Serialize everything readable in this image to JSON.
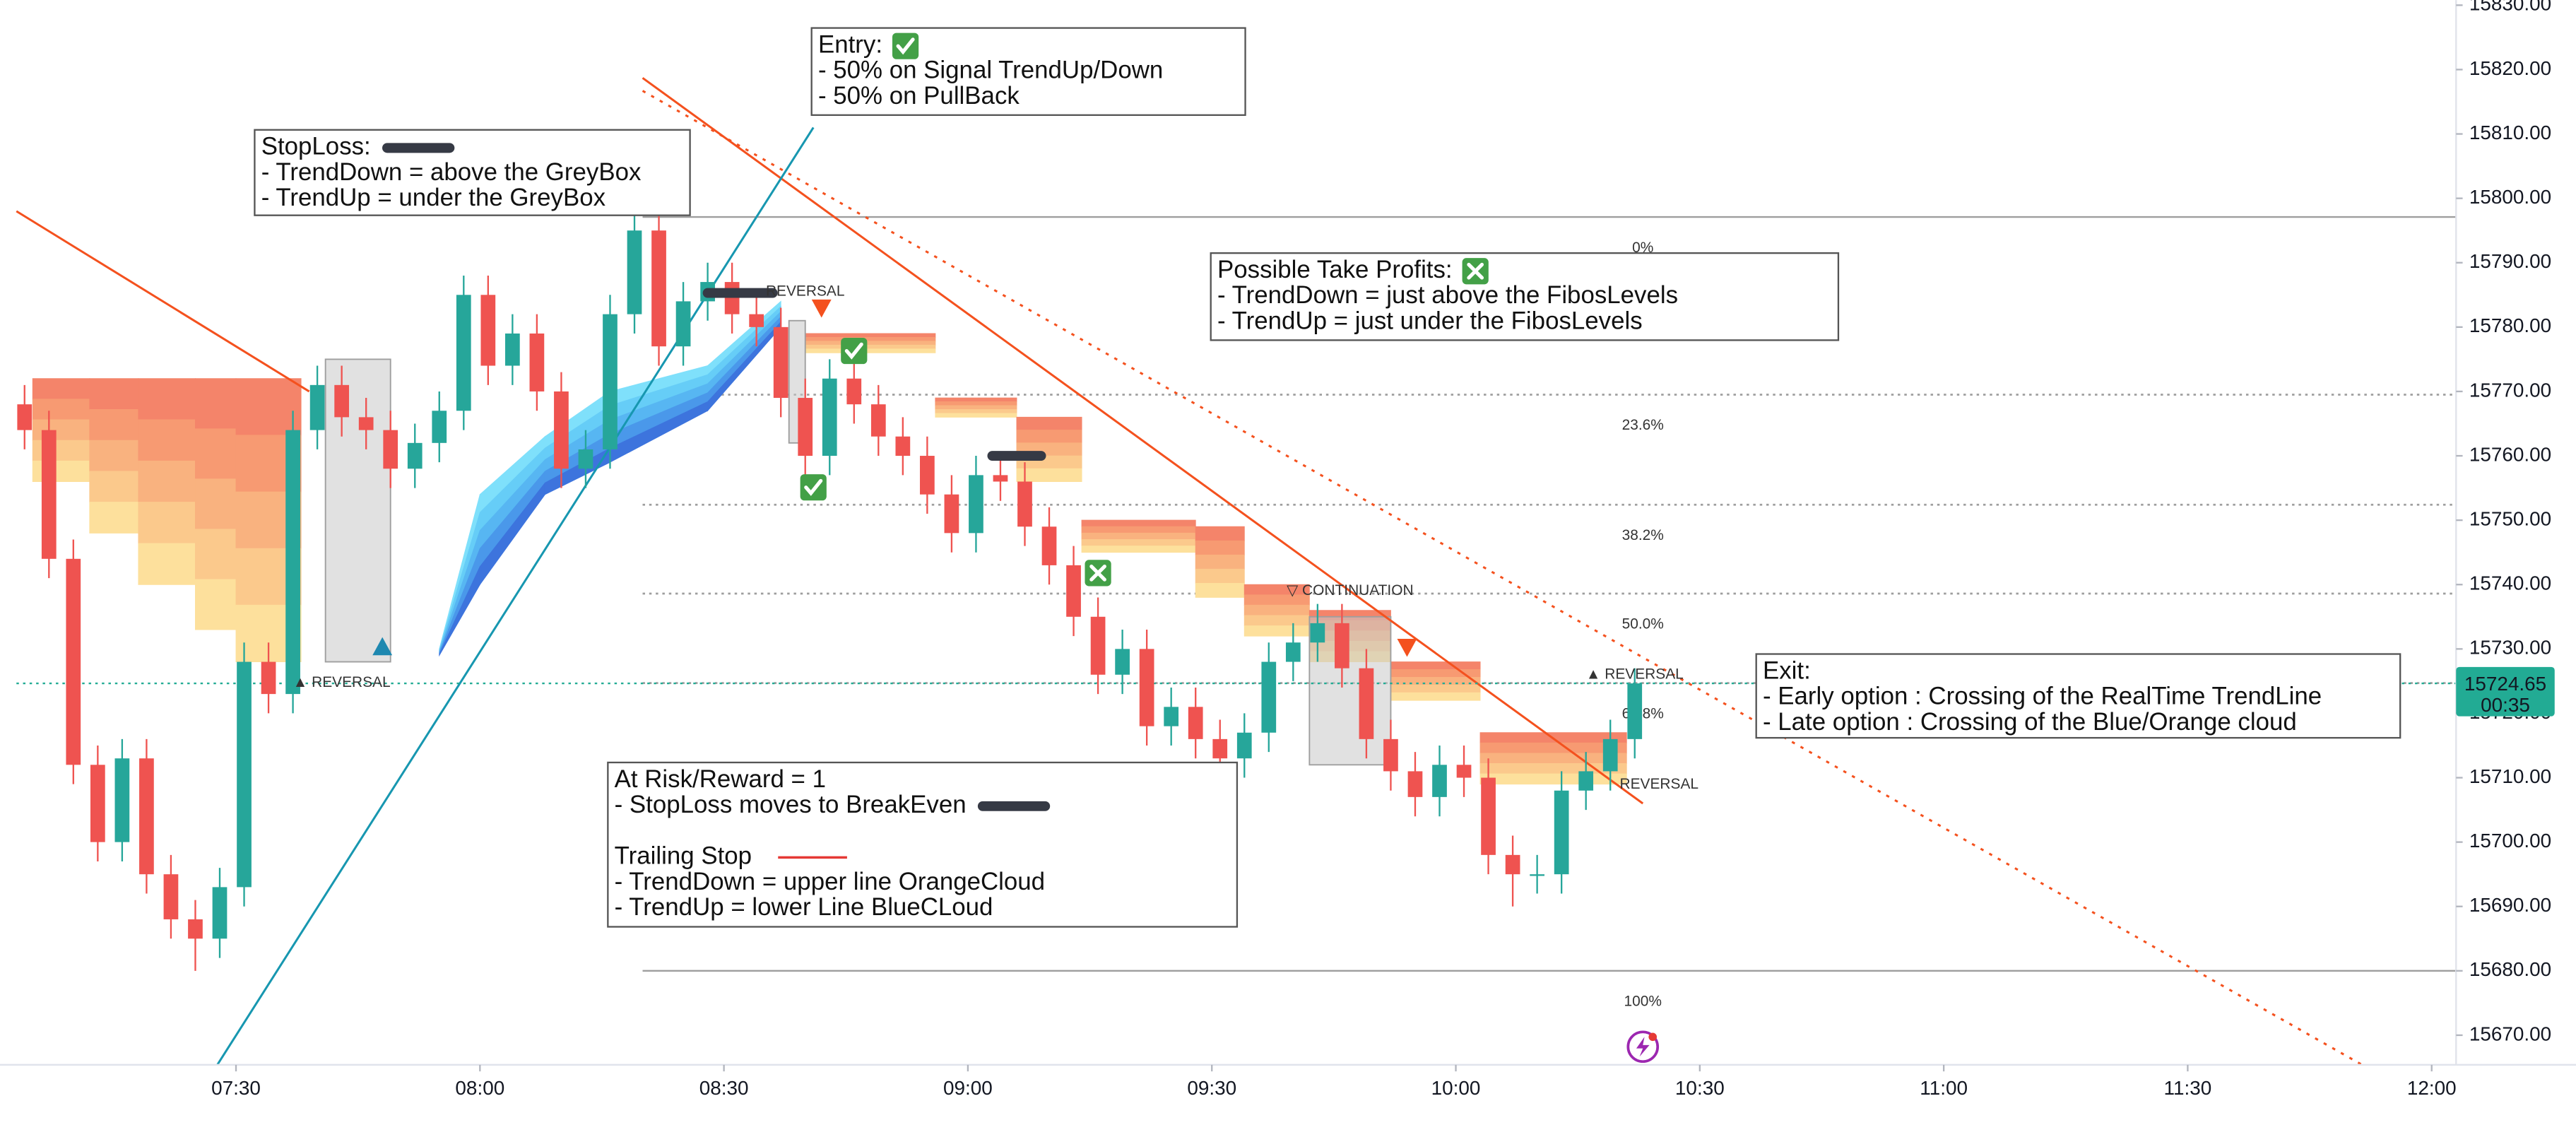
{
  "chart_data": {
    "type": "candlestick",
    "x": [
      "07:04",
      "07:07",
      "07:10",
      "07:13",
      "07:16",
      "07:19",
      "07:22",
      "07:25",
      "07:28",
      "07:31",
      "07:34",
      "07:37",
      "07:40",
      "07:43",
      "07:46",
      "07:49",
      "07:52",
      "07:55",
      "07:58",
      "08:01",
      "08:04",
      "08:07",
      "08:10",
      "08:13",
      "08:16",
      "08:19",
      "08:22",
      "08:25",
      "08:28",
      "08:31",
      "08:34",
      "08:37",
      "08:40",
      "08:43",
      "08:46",
      "08:49",
      "08:52",
      "08:55",
      "08:58",
      "09:01",
      "09:04",
      "09:07",
      "09:10",
      "09:13",
      "09:16",
      "09:19",
      "09:22",
      "09:25",
      "09:28",
      "09:31",
      "09:34",
      "09:37",
      "09:40",
      "09:43",
      "09:46",
      "09:49",
      "09:52",
      "09:55",
      "09:58",
      "10:01",
      "10:04",
      "10:07",
      "10:10",
      "10:13",
      "10:16",
      "10:19",
      "10:22"
    ],
    "open": [
      15768,
      15764,
      15744,
      15712,
      15700,
      15713,
      15695,
      15688,
      15685,
      15693,
      15728,
      15723,
      15764,
      15771,
      15766,
      15764,
      15758,
      15762,
      15767,
      15785,
      15774,
      15779,
      15770,
      15758,
      15761,
      15782,
      15795,
      15777,
      15784,
      15787,
      15782,
      15780,
      15769,
      15760,
      15772,
      15768,
      15763,
      15760,
      15754,
      15748,
      15757,
      15756,
      15749,
      15743,
      15735,
      15726,
      15730,
      15718,
      15721,
      15716,
      15713,
      15717,
      15728,
      15731,
      15734,
      15727,
      15716,
      15711,
      15707,
      15712,
      15710,
      15698,
      15695,
      15695,
      15708,
      15711,
      15716
    ],
    "high": [
      15771,
      15767,
      15747,
      15715,
      15716,
      15716,
      15698,
      15691,
      15696,
      15731,
      15731,
      15767,
      15774,
      15774,
      15769,
      15767,
      15765,
      15770,
      15788,
      15788,
      15782,
      15782,
      15773,
      15764,
      15785,
      15800,
      15798,
      15787,
      15790,
      15790,
      15785,
      15783,
      15772,
      15775,
      15775,
      15771,
      15766,
      15763,
      15757,
      15760,
      15760,
      15759,
      15752,
      15746,
      15738,
      15733,
      15733,
      15724,
      15724,
      15719,
      15720,
      15731,
      15734,
      15737,
      15737,
      15730,
      15719,
      15714,
      15715,
      15715,
      15713,
      15701,
      15698,
      15711,
      15714,
      15719,
      15727
    ],
    "low": [
      15761,
      15741,
      15709,
      15697,
      15697,
      15692,
      15685,
      15680,
      15682,
      15690,
      15720,
      15720,
      15761,
      15763,
      15761,
      15755,
      15755,
      15759,
      15764,
      15771,
      15771,
      15767,
      15755,
      15755,
      15758,
      15779,
      15774,
      15774,
      15781,
      15779,
      15777,
      15766,
      15757,
      15757,
      15765,
      15760,
      15757,
      15751,
      15745,
      15745,
      15753,
      15746,
      15740,
      15732,
      15723,
      15723,
      15715,
      15715,
      15713,
      15710,
      15710,
      15714,
      15725,
      15728,
      15724,
      15713,
      15708,
      15704,
      15704,
      15707,
      15695,
      15690,
      15692,
      15692,
      15705,
      15708,
      15713
    ],
    "close": [
      15764,
      15744,
      15712,
      15700,
      15713,
      15695,
      15688,
      15685,
      15693,
      15728,
      15723,
      15764,
      15771,
      15766,
      15764,
      15758,
      15762,
      15767,
      15785,
      15774,
      15779,
      15770,
      15758,
      15761,
      15782,
      15795,
      15777,
      15784,
      15787,
      15782,
      15780,
      15769,
      15760,
      15772,
      15768,
      15763,
      15760,
      15754,
      15748,
      15757,
      15756,
      15749,
      15743,
      15735,
      15726,
      15730,
      15718,
      15721,
      15716,
      15713,
      15717,
      15728,
      15731,
      15734,
      15727,
      15716,
      15711,
      15707,
      15712,
      15710,
      15698,
      15695,
      15695,
      15708,
      15711,
      15716,
      15724.65
    ],
    "up_color": "#26a69a",
    "down_color": "#ef5350",
    "xlim": [
      "07:03",
      "12:03"
    ],
    "xticks": [
      "07:30",
      "08:00",
      "08:30",
      "09:00",
      "09:30",
      "10:00",
      "10:30",
      "11:00",
      "11:30",
      "12:00"
    ],
    "ylim": [
      15665.4,
      15830.8
    ],
    "yticks": [
      {
        "value": 15670,
        "label": "15670.00"
      },
      {
        "value": 15680,
        "label": "15680.00"
      },
      {
        "value": 15690,
        "label": "15690.00"
      },
      {
        "value": 15700,
        "label": "15700.00"
      },
      {
        "value": 15710,
        "label": "15710.00"
      },
      {
        "value": 15720,
        "label": "15720.00"
      },
      {
        "value": 15730,
        "label": "15730.00"
      },
      {
        "value": 15740,
        "label": "15740.00"
      },
      {
        "value": 15750,
        "label": "15750.00"
      },
      {
        "value": 15760,
        "label": "15760.00"
      },
      {
        "value": 15770,
        "label": "15770.00"
      },
      {
        "value": 15780,
        "label": "15780.00"
      },
      {
        "value": 15790,
        "label": "15790.00"
      },
      {
        "value": 15800,
        "label": "15800.00"
      },
      {
        "value": 15810,
        "label": "15810.00"
      },
      {
        "value": 15820,
        "label": "15820.00"
      },
      {
        "value": 15830,
        "label": "15830.00"
      }
    ],
    "last_price": {
      "value": 15724.65,
      "countdown": "00:35",
      "color": "#22ab94"
    },
    "fib": {
      "x": [
        "08:20",
        "12:03"
      ],
      "color": "#9e9e9e",
      "levels": [
        {
          "level": "0%",
          "price": 15797.1,
          "style": "solid"
        },
        {
          "level": "23.6%",
          "price": 15769.5,
          "style": "dotted"
        },
        {
          "level": "38.2%",
          "price": 15752.4,
          "style": "dotted"
        },
        {
          "level": "50.0%",
          "price": 15738.6,
          "style": "dotted"
        },
        {
          "level": "61.8%",
          "price": 15724.7,
          "style": "dotted"
        },
        {
          "level": "100%",
          "price": 15680,
          "style": "solid"
        }
      ]
    },
    "clouds": [
      {
        "shape": "step",
        "colors": [
          "#f4846a",
          "#f79a72",
          "#f9b27f",
          "#fbc98c",
          "#fde09c"
        ],
        "x": [
          "07:05",
          "07:12",
          "07:18",
          "07:25",
          "07:30",
          "07:38"
        ],
        "upper": [
          15772,
          15772,
          15772,
          15772,
          15772,
          15772
        ],
        "lower": [
          15756,
          15748,
          15740,
          15733,
          15728,
          15728
        ]
      },
      {
        "shape": "linear",
        "colors": [
          "#7fe0fb",
          "#66cdf7",
          "#57b6f2",
          "#4a98ea",
          "#3d74dd"
        ],
        "x": [
          "07:55",
          "08:00",
          "08:08",
          "08:16",
          "08:28",
          "08:37"
        ],
        "upper": [
          15730,
          15754,
          15763,
          15770,
          15774,
          15784
        ],
        "lower": [
          15729,
          15740,
          15754,
          15759,
          15767,
          15780
        ]
      },
      {
        "shape": "step",
        "colors": [
          "#f4846a",
          "#f79a72",
          "#f9b27f",
          "#fbc98c",
          "#fde09c"
        ],
        "x": [
          "08:40",
          "08:56",
          "09:06",
          "09:14",
          "09:28",
          "09:34",
          "09:42",
          "09:52",
          "10:03",
          "10:21"
        ],
        "upper": [
          15779,
          15769,
          15766,
          15750,
          15749,
          15740,
          15736,
          15728,
          15717,
          15714
        ],
        "lower": [
          15776,
          15766,
          15756,
          15745,
          15738,
          15732,
          15728,
          15722,
          15709,
          15708
        ]
      }
    ],
    "boxes": [
      {
        "x": [
          "07:41",
          "07:49"
        ],
        "y": [
          15775,
          15728
        ]
      },
      {
        "x": [
          "08:38",
          "08:40"
        ],
        "y": [
          15781,
          15762
        ]
      },
      {
        "x": [
          "09:42",
          "09:52"
        ],
        "y": [
          15735,
          15712
        ]
      }
    ],
    "trendlines": [
      {
        "x": [
          "07:03",
          "07:39"
        ],
        "y": [
          15798,
          15770
        ],
        "color": "#f4511e",
        "style": "solid"
      },
      {
        "x": [
          "08:20",
          "10:23"
        ],
        "y": [
          15818.7,
          15706
        ],
        "color": "#f4511e",
        "style": "solid"
      },
      {
        "x": [
          "08:20",
          "11:52"
        ],
        "y": [
          15816.7,
          15665
        ],
        "color": "#f4511e",
        "style": "dotted"
      },
      {
        "x": [
          "07:27",
          "08:41"
        ],
        "y": [
          15664,
          15811
        ],
        "color": "#1797b0",
        "style": "solid"
      }
    ],
    "stop_marks": [
      {
        "x": [
          "08:28",
          "08:36"
        ],
        "price": 15785.3
      },
      {
        "x": [
          "09:03",
          "09:09"
        ],
        "price": 15760
      }
    ],
    "markers": [
      {
        "x": "07:48",
        "price": 15730.3,
        "shape": "triangle-up",
        "color": "#1e88b0"
      },
      {
        "x": "08:42",
        "price": 15783,
        "shape": "triangle-down",
        "color": "#f4511e"
      },
      {
        "x": "09:54",
        "price": 15730.3,
        "shape": "triangle-down",
        "color": "#f4511e"
      }
    ],
    "icons": [
      {
        "x": "08:46",
        "price": 15776.3,
        "kind": "check"
      },
      {
        "x": "08:41",
        "price": 15755.1,
        "kind": "check"
      },
      {
        "x": "09:16",
        "price": 15741.8,
        "kind": "cross"
      }
    ],
    "labels": [
      {
        "x": "07:43",
        "price": 15724.7,
        "text": "▲ REVERSAL"
      },
      {
        "x": "08:40",
        "price": 15785.5,
        "text": "REVERSAL"
      },
      {
        "x": "09:47",
        "price": 15739,
        "text": "▽ CONTINUATION"
      },
      {
        "x": "10:22",
        "price": 15726,
        "text": "▲ REVERSAL"
      },
      {
        "x": "10:25",
        "price": 15708.9,
        "text": "REVERSAL"
      }
    ],
    "notes": [
      {
        "lines": [
          "StopLoss:",
          "- TrendDown = above the GreyBox",
          "- TrendUp = under the GreyBox"
        ]
      },
      {
        "lines": [
          "Entry:",
          "- 50% on Signal TrendUp/Down",
          "- 50% on PullBack"
        ]
      },
      {
        "lines": [
          "Possible Take Profits:",
          "- TrendDown = just above the FibosLevels",
          "- TrendUp = just under the FibosLevels"
        ]
      },
      {
        "lines": [
          "At Risk/Reward = 1",
          "- StopLoss moves to BreakEven",
          "Trailing Stop",
          "- TrendDown = upper line OrangeCloud",
          "- TrendUp = lower Line BlueCLoud"
        ]
      },
      {
        "lines": [
          "Exit:",
          "- Early option : Crossing of the RealTime TrendLine",
          "- Late option : Crossing of the Blue/Orange cloud"
        ]
      }
    ]
  }
}
